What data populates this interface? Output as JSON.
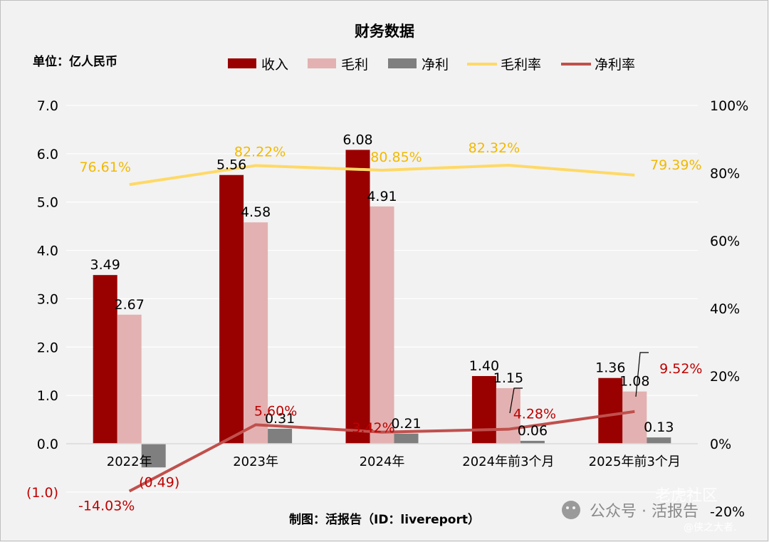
{
  "chart_data": {
    "type": "bar",
    "title": "财务数据",
    "unit_label": "单位：亿人民币",
    "footer": "制图：活报告（ID：livereport）",
    "categories": [
      "2022年",
      "2023年",
      "2024年",
      "2024年前3个月",
      "2025年前3个月"
    ],
    "series": [
      {
        "name": "收入",
        "type": "bar",
        "axis": "left",
        "color": "#990000",
        "values": [
          3.49,
          5.56,
          6.08,
          1.4,
          1.36
        ],
        "labels": [
          "3.49",
          "5.56",
          "6.08",
          "1.40",
          "1.36"
        ]
      },
      {
        "name": "毛利",
        "type": "bar",
        "axis": "left",
        "color": "#e3b1b1",
        "values": [
          2.67,
          4.58,
          4.91,
          1.15,
          1.08
        ],
        "labels": [
          "2.67",
          "4.58",
          "4.91",
          "1.15",
          "1.08"
        ]
      },
      {
        "name": "净利",
        "type": "bar",
        "axis": "left",
        "color": "#7f7f7f",
        "values": [
          -0.49,
          0.31,
          0.21,
          0.06,
          0.13
        ],
        "labels": [
          "(0.49)",
          "0.31",
          "0.21",
          "0.06",
          "0.13"
        ]
      },
      {
        "name": "毛利率",
        "type": "line",
        "axis": "right",
        "color": "#ffd966",
        "values": [
          76.61,
          82.22,
          80.85,
          82.32,
          79.39
        ],
        "labels": [
          "76.61%",
          "82.22%",
          "80.85%",
          "82.32%",
          "79.39%"
        ]
      },
      {
        "name": "净利率",
        "type": "line",
        "axis": "right",
        "color": "#c0504d",
        "values": [
          -14.03,
          5.6,
          3.42,
          4.28,
          9.52
        ],
        "labels": [
          "-14.03%",
          "5.60%",
          "3.42%",
          "4.28%",
          "9.52%"
        ]
      }
    ],
    "y_left": {
      "ylim": [
        -1.0,
        7.0
      ],
      "ticks": [
        7.0,
        6.0,
        5.0,
        4.0,
        3.0,
        2.0,
        1.0,
        0.0,
        -1.0
      ],
      "tick_labels": [
        "7.0",
        "6.0",
        "5.0",
        "4.0",
        "3.0",
        "2.0",
        "1.0",
        "0.0",
        "(1.0)"
      ]
    },
    "y_right": {
      "ylim": [
        -20,
        100
      ],
      "ticks": [
        100,
        80,
        60,
        40,
        20,
        0,
        -20
      ],
      "tick_labels": [
        "100%",
        "80%",
        "60%",
        "40%",
        "20%",
        "0%",
        "-20%"
      ]
    },
    "grid": true,
    "legend": "top"
  },
  "watermark": {
    "text": "公众号 · 活报告",
    "source": "老虎社区",
    "handle": "@侠之大者."
  }
}
